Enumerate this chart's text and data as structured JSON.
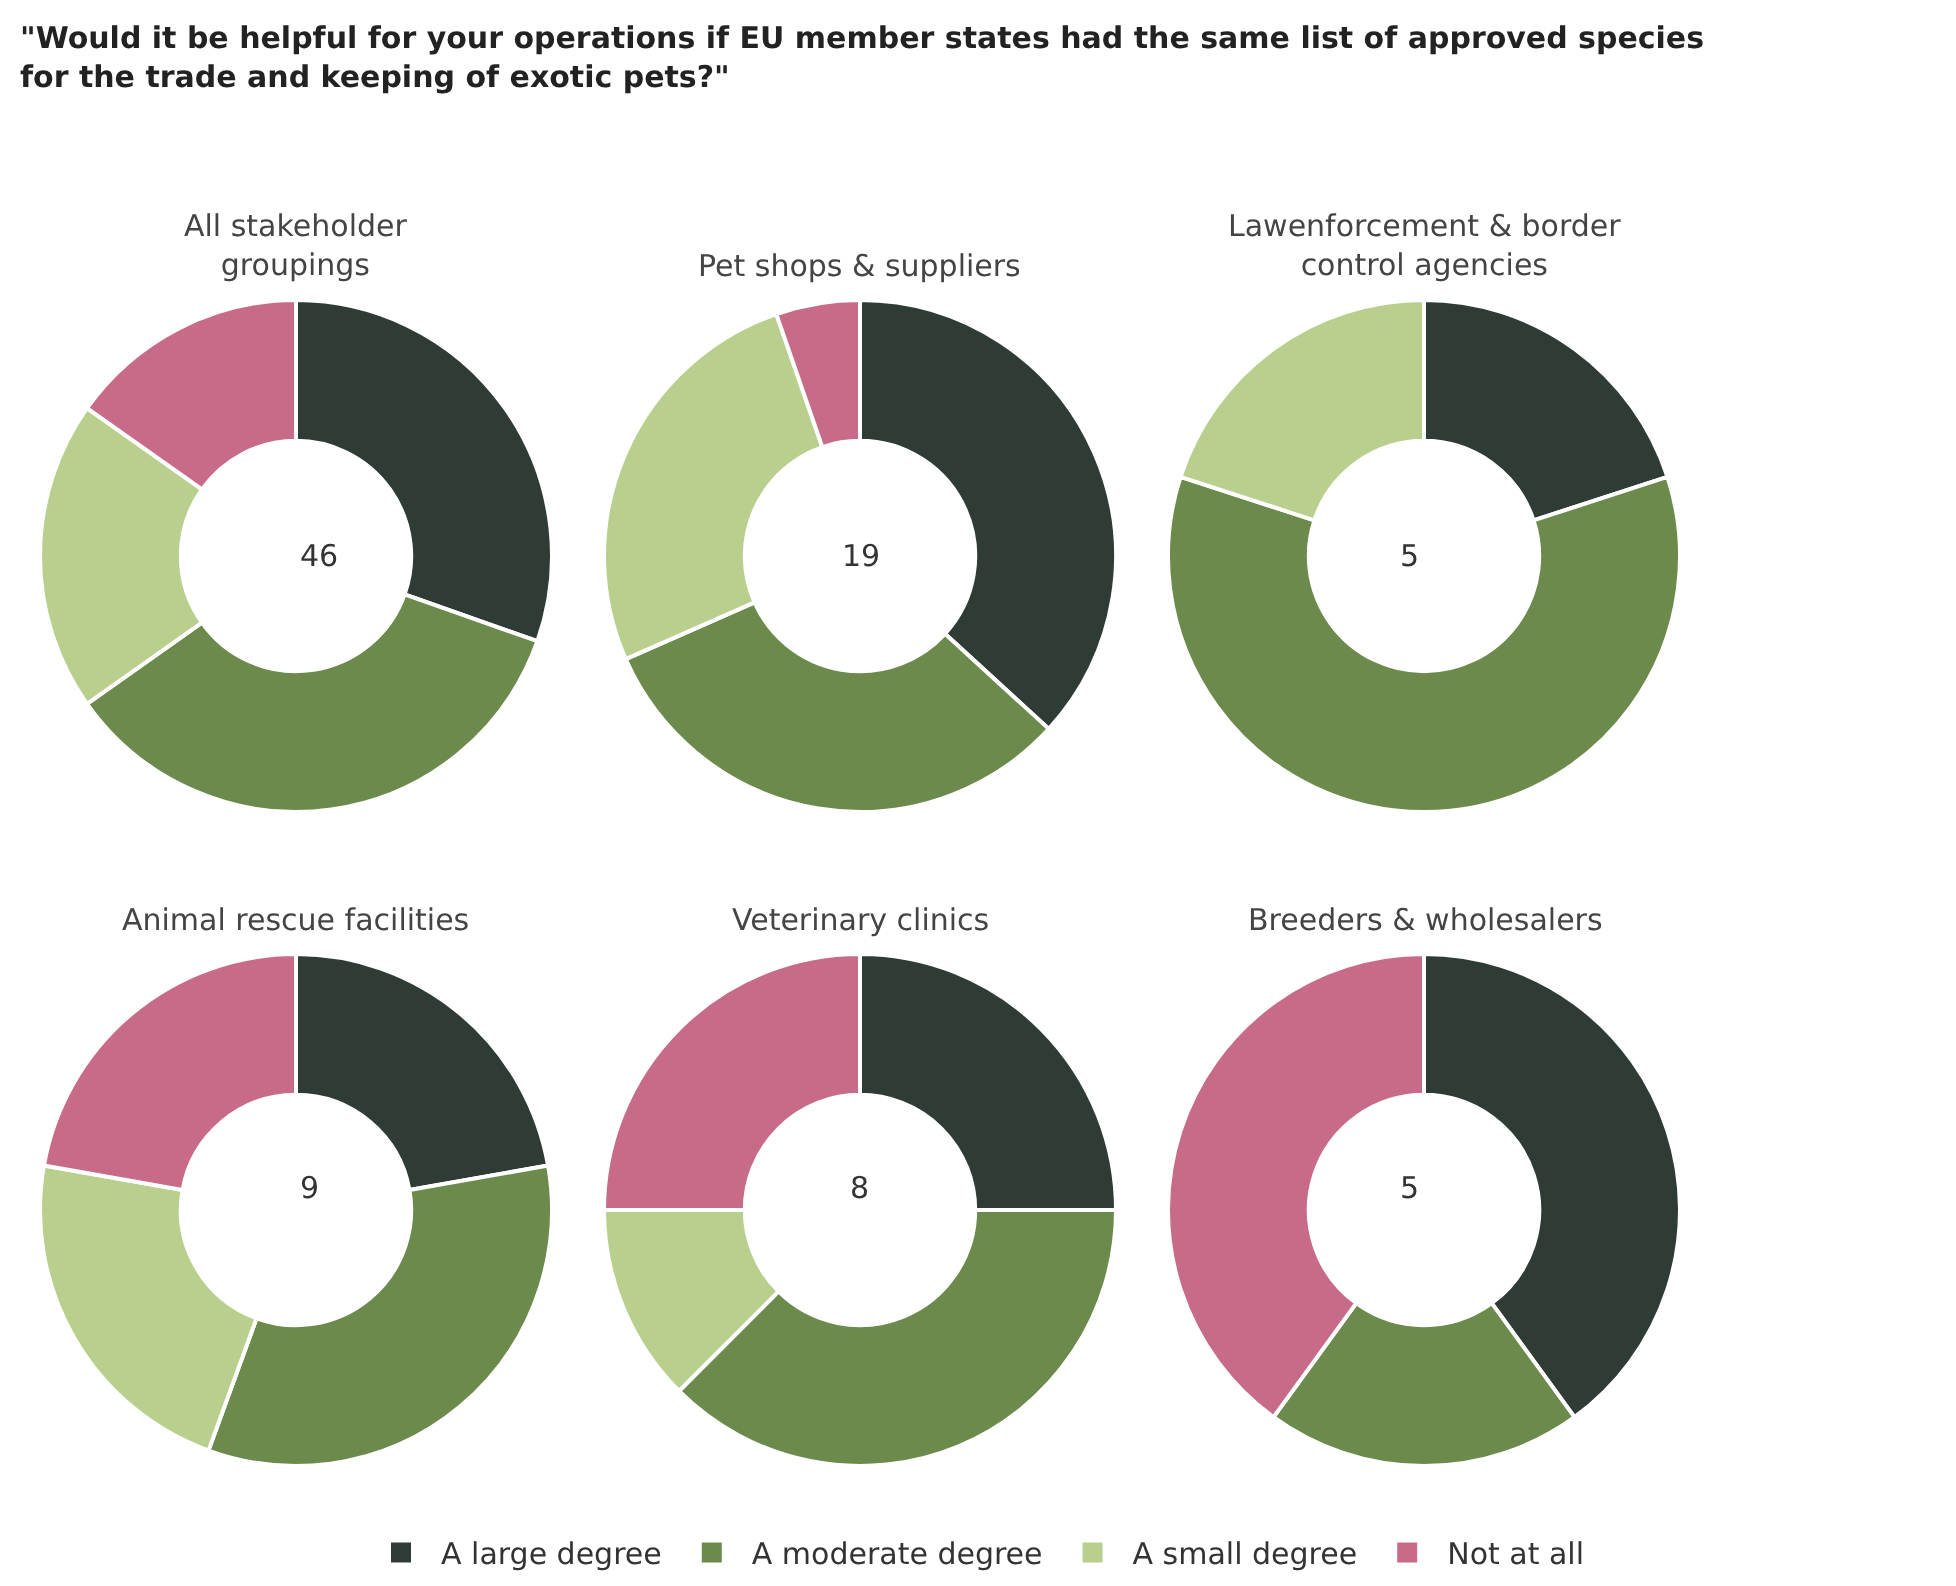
{
  "chart_data": [
    {
      "type": "donut",
      "title": "All stakeholder groupings",
      "annotations": [
        "\"Would it be helpful for your operations if EU member states had the same list of approved species for the trade and keeping of exotic pets?\"",
        "46"
      ],
      "legend": "bottom",
      "categories": [
        "A large degree",
        "A moderate degree",
        "A small degree",
        "Not at all"
      ],
      "values": [
        30.4,
        34.8,
        19.6,
        15.2
      ],
      "colors": [
        "#2f3b35",
        "#6b8a4c",
        "#b9cf8e",
        "#c86b88"
      ]
    },
    {
      "type": "donut",
      "title": "Pet shops & suppliers",
      "annotations": [
        "19"
      ],
      "categories": [
        null,
        null,
        null,
        null
      ],
      "values": [
        36.8,
        31.6,
        26.3,
        5.3
      ],
      "colors": [
        "#2f3b35",
        "#6b8a4c",
        "#b9cf8e",
        "#c86b88"
      ]
    },
    {
      "type": "donut",
      "title": "Lawenforcement & border control agencies",
      "annotations": [
        "5"
      ],
      "categories": [
        null,
        null,
        null,
        null
      ],
      "values": [
        20,
        60,
        20,
        0
      ],
      "colors": [
        "#2f3b35",
        "#6b8a4c",
        "#b9cf8e",
        "#c86b88"
      ]
    },
    {
      "type": "donut",
      "title": "Animal rescue facilities",
      "annotations": [
        "9"
      ],
      "categories": [
        null,
        null,
        null,
        null
      ],
      "values": [
        22.2,
        33.3,
        22.2,
        22.2
      ],
      "colors": [
        "#2f3b35",
        "#6b8a4c",
        "#b9cf8e",
        "#c86b88"
      ]
    },
    {
      "type": "donut",
      "title": "Veterinary clinics",
      "annotations": [
        "8"
      ],
      "categories": [
        null,
        null,
        null,
        null
      ],
      "values": [
        25,
        37.5,
        12.5,
        25
      ],
      "colors": [
        "#2f3b35",
        "#6b8a4c",
        "#b9cf8e",
        "#c86b88"
      ]
    },
    {
      "type": "donut",
      "title": "Breeders & wholesalers",
      "annotations": [
        "5"
      ],
      "categories": [
        null,
        null,
        null,
        null
      ],
      "values": [
        40,
        20,
        0,
        40
      ],
      "colors": [
        "#2f3b35",
        "#6b8a4c",
        "#b9cf8e",
        "#c86b88"
      ]
    }
  ]
}
